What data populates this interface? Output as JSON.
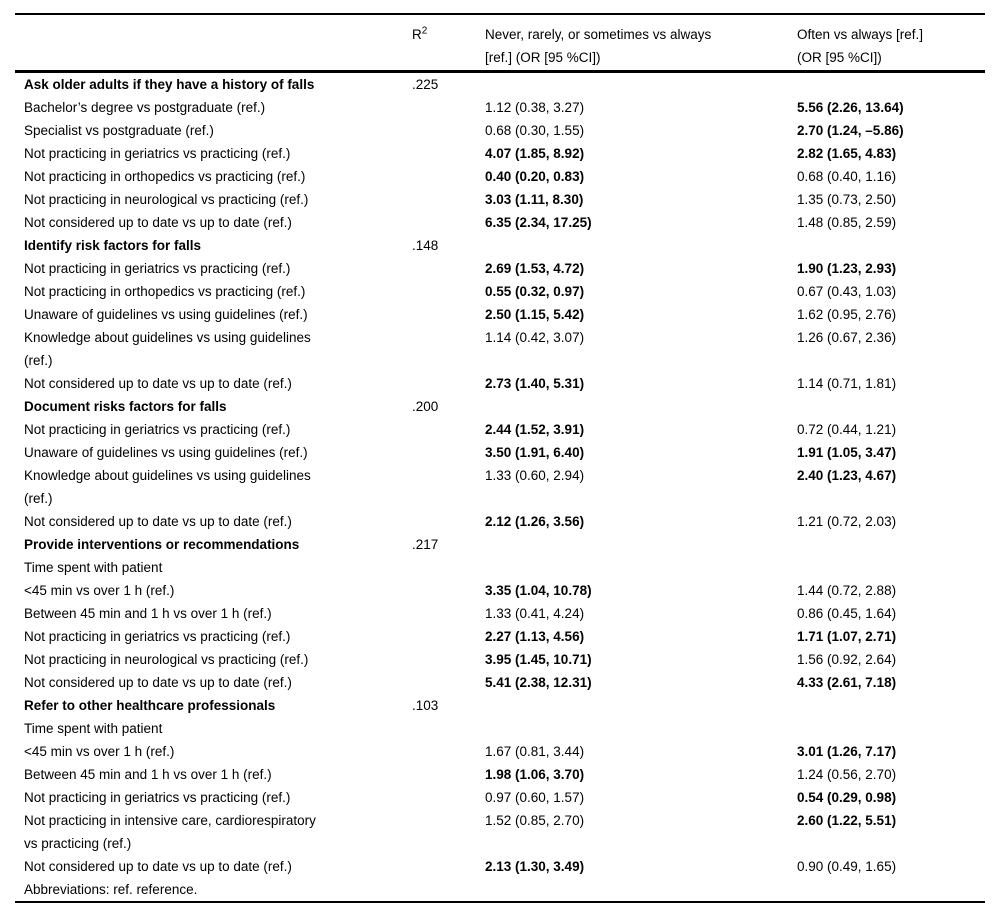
{
  "table": {
    "headers": {
      "label": "",
      "r2_base": "R",
      "r2_sup": "2",
      "or_never": "Never, rarely, or sometimes vs always\n[ref.] (OR [95 %CI])",
      "or_often": "Often vs always [ref.]\n(OR [95 %CI])"
    },
    "rows": [
      {
        "label": "Ask older adults if they have a history of falls",
        "bold": true,
        "r2": ".225",
        "or1": "",
        "or2": ""
      },
      {
        "label": "Bachelor’s degree vs postgraduate (ref.)",
        "or1": "1.12 (0.38, 3.27)",
        "or2": "5.56 (2.26, 13.64)",
        "or2b": true
      },
      {
        "label": "Specialist vs postgraduate (ref.)",
        "or1": "0.68 (0.30, 1.55)",
        "or2": "2.70 (1.24, –5.86)",
        "or2b": true
      },
      {
        "label": "Not practicing in geriatrics vs practicing (ref.)",
        "or1": "4.07 (1.85, 8.92)",
        "or1b": true,
        "or2": "2.82 (1.65, 4.83)",
        "or2b": true
      },
      {
        "label": "Not practicing in orthopedics vs practicing (ref.)",
        "or1": "0.40 (0.20, 0.83)",
        "or1b": true,
        "or2": "0.68 (0.40, 1.16)"
      },
      {
        "label": "Not practicing in neurological vs practicing (ref.)",
        "or1": "3.03 (1.11, 8.30)",
        "or1b": true,
        "or2": "1.35 (0.73, 2.50)"
      },
      {
        "label": "Not considered up to date vs up to date (ref.)",
        "or1": "6.35 (2.34, 17.25)",
        "or1b": true,
        "or2": "1.48 (0.85, 2.59)"
      },
      {
        "label": "Identify risk factors for falls",
        "bold": true,
        "r2": ".148"
      },
      {
        "label": "Not practicing in geriatrics vs practicing (ref.)",
        "or1": "2.69 (1.53, 4.72)",
        "or1b": true,
        "or2": "1.90 (1.23, 2.93)",
        "or2b": true
      },
      {
        "label": "Not practicing in orthopedics vs practicing (ref.)",
        "or1": "0.55 (0.32, 0.97)",
        "or1b": true,
        "or2": "0.67 (0.43, 1.03)"
      },
      {
        "label": "Unaware of guidelines vs using guidelines (ref.)",
        "or1": "2.50 (1.15, 5.42)",
        "or1b": true,
        "or2": "1.62 (0.95, 2.76)"
      },
      {
        "label": "Knowledge about guidelines vs using guidelines\n(ref.)",
        "or1": "1.14 (0.42, 3.07)",
        "or2": "1.26 (0.67, 2.36)"
      },
      {
        "label": "Not considered up to date vs up to date (ref.)",
        "or1": "2.73 (1.40, 5.31)",
        "or1b": true,
        "or2": "1.14 (0.71, 1.81)"
      },
      {
        "label": "Document risks factors for falls",
        "bold": true,
        "r2": ".200"
      },
      {
        "label": "Not practicing in geriatrics vs practicing (ref.)",
        "or1": "2.44 (1.52, 3.91)",
        "or1b": true,
        "or2": "0.72 (0.44, 1.21)"
      },
      {
        "label": "Unaware of guidelines vs using guidelines (ref.)",
        "or1": "3.50 (1.91, 6.40)",
        "or1b": true,
        "or2": "1.91 (1.05, 3.47)",
        "or2b": true
      },
      {
        "label": "Knowledge about guidelines vs using guidelines\n(ref.)",
        "or1": "1.33 (0.60, 2.94)",
        "or2": "2.40 (1.23, 4.67)",
        "or2b": true
      },
      {
        "label": "Not considered up to date vs up to date (ref.)",
        "or1": "2.12 (1.26, 3.56)",
        "or1b": true,
        "or2": "1.21 (0.72, 2.03)"
      },
      {
        "label": "Provide interventions or recommendations",
        "bold": true,
        "r2": ".217"
      },
      {
        "label": "Time spent with patient"
      },
      {
        "label": "<45 min vs over 1 h (ref.)",
        "or1": "3.35 (1.04, 10.78)",
        "or1b": true,
        "or2": "1.44 (0.72, 2.88)"
      },
      {
        "label": "Between 45 min and 1 h vs over 1 h (ref.)",
        "or1": "1.33 (0.41, 4.24)",
        "or2": "0.86 (0.45, 1.64)"
      },
      {
        "label": "Not practicing in geriatrics vs practicing (ref.)",
        "or1": "2.27 (1.13, 4.56)",
        "or1b": true,
        "or2": "1.71 (1.07, 2.71)",
        "or2b": true
      },
      {
        "label": "Not practicing in neurological vs practicing (ref.)",
        "or1": "3.95 (1.45, 10.71)",
        "or1b": true,
        "or2": "1.56 (0.92, 2.64)"
      },
      {
        "label": "Not considered up to date vs up to date (ref.)",
        "or1": "5.41 (2.38, 12.31)",
        "or1b": true,
        "or2": "4.33 (2.61, 7.18)",
        "or2b": true
      },
      {
        "label": "Refer to other healthcare professionals",
        "bold": true,
        "r2": ".103"
      },
      {
        "label": "Time spent with patient"
      },
      {
        "label": "<45 min vs over 1 h (ref.)",
        "or1": "1.67 (0.81, 3.44)",
        "or2": "3.01 (1.26, 7.17)",
        "or2b": true
      },
      {
        "label": "Between 45 min and 1 h vs over 1 h (ref.)",
        "or1": "1.98 (1.06, 3.70)",
        "or1b": true,
        "or2": "1.24 (0.56, 2.70)"
      },
      {
        "label": "Not practicing in geriatrics vs practicing (ref.)",
        "or1": "0.97 (0.60, 1.57)",
        "or2": "0.54 (0.29, 0.98)",
        "or2b": true
      },
      {
        "label": "Not practicing in intensive care, cardiorespiratory\nvs practicing (ref.)",
        "or1": "1.52 (0.85, 2.70)",
        "or2": "2.60 (1.22, 5.51)",
        "or2b": true
      },
      {
        "label": "Not considered up to date vs up to date (ref.)",
        "or1": "2.13 (1.30, 3.49)",
        "or1b": true,
        "or2": "0.90 (0.49, 1.65)"
      },
      {
        "label": "Abbreviations: ref. reference."
      }
    ]
  }
}
